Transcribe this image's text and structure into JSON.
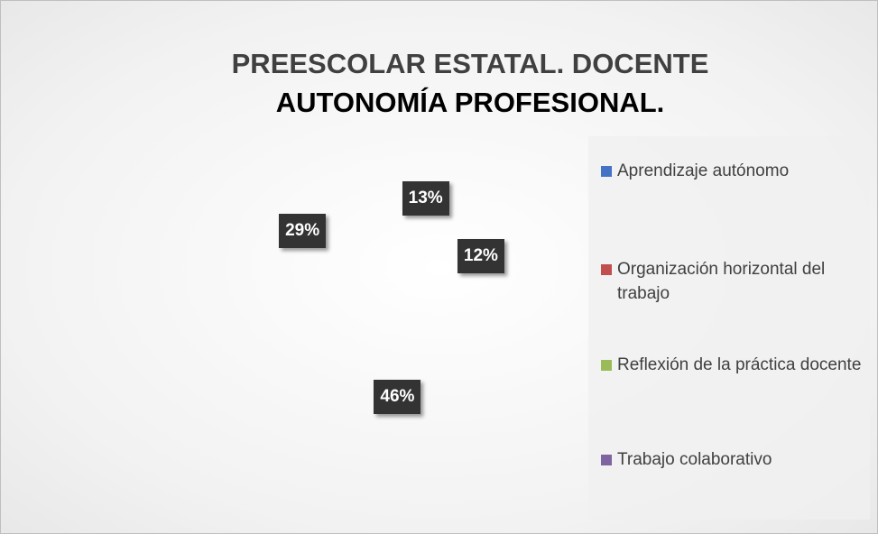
{
  "chart_data": {
    "type": "pie",
    "title": [
      "PREESCOLAR ESTATAL. DOCENTE",
      "AUTONOMÍA PROFESIONAL."
    ],
    "categories": [
      "Aprendizaje autónomo",
      "Organización horizontal del trabajo",
      "Reflexión de la práctica docente",
      "Trabajo colaborativo"
    ],
    "values": [
      13,
      12,
      46,
      29
    ],
    "value_labels": [
      "13%",
      "12%",
      "46%",
      "29%"
    ],
    "colors": [
      "#4472c4",
      "#c0504d",
      "#9bbb59",
      "#8064a2"
    ],
    "legend": "right"
  }
}
